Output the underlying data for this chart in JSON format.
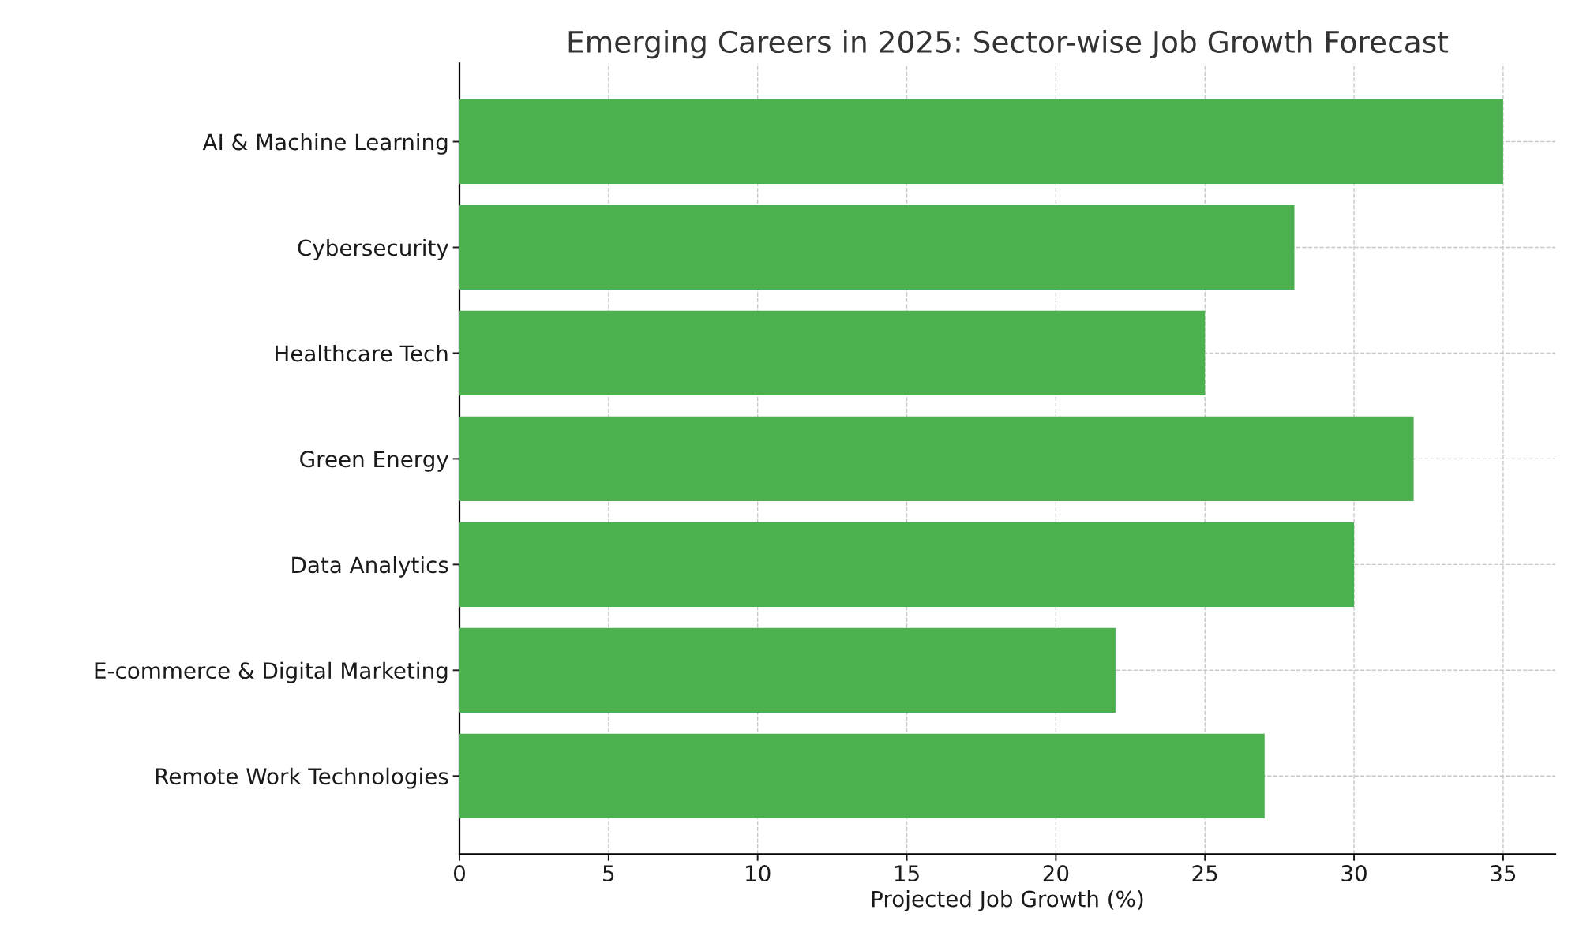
{
  "chart_data": {
    "type": "bar",
    "orientation": "horizontal",
    "title": "Emerging Careers in 2025: Sector-wise Job Growth Forecast",
    "xlabel": "Projected Job Growth (%)",
    "categories": [
      "AI & Machine Learning",
      "Cybersecurity",
      "Healthcare Tech",
      "Green Energy",
      "Data Analytics",
      "E-commerce & Digital Marketing",
      "Remote Work Technologies"
    ],
    "values": [
      35,
      28,
      25,
      32,
      30,
      22,
      27
    ],
    "color": "#4caf50",
    "xlim": [
      0,
      36.75
    ],
    "xticks": [
      0,
      5,
      10,
      15,
      20,
      25,
      30,
      35
    ],
    "grid": true,
    "line_style": "dashed"
  }
}
